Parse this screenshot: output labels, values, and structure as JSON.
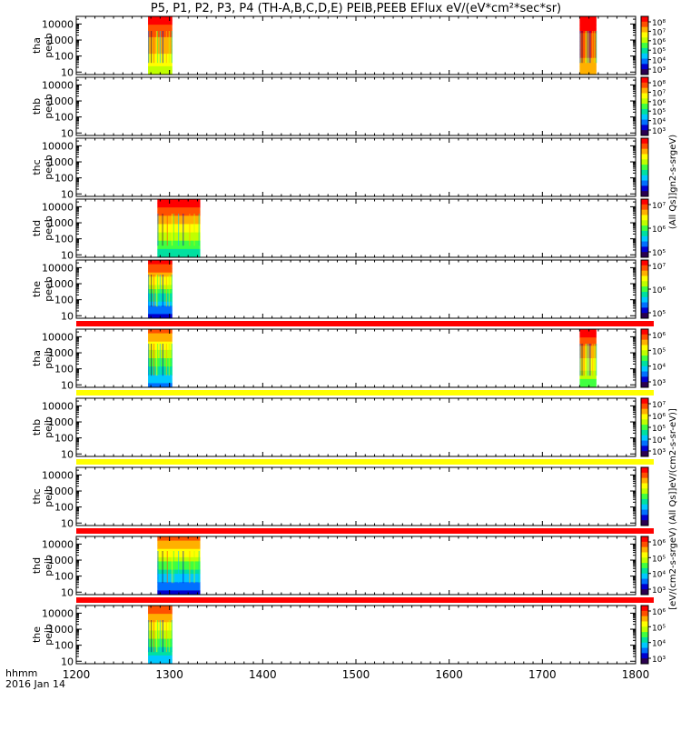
{
  "title": "P5, P1, P2, P3, P4 (TH-A,B,C,D,E) PEIB,PEEB EFlux eV/(eV*cm²*sec*sr)",
  "time_label": "hhmm",
  "date_label": "2016 Jan 14",
  "x_ticks": [
    "1200",
    "1300",
    "1400",
    "1500",
    "1600",
    "1700",
    "1800"
  ],
  "y_ticks": [
    "10",
    "100",
    "1000",
    "10000"
  ],
  "cbar_label_a": "(All Qs]]gn2-s-srgeV)",
  "cbar_label_b": "[eV/(cm2-s-srgeV) (All Qs]]eV/(cm2-s-sr-eV)]",
  "colors": {
    "rainbow": [
      "#2a0050",
      "#0000d0",
      "#0070ff",
      "#00c8ff",
      "#00e0a0",
      "#40ff40",
      "#c0ff00",
      "#ffff00",
      "#ffb000",
      "#ff5000",
      "#ff0000"
    ],
    "flag_red": "#ff0000",
    "flag_yellow": "#ffff00",
    "frame": "#000000",
    "background": "#ffffff"
  },
  "chart_data": {
    "type": "heatmap",
    "x_unit": "hhmm",
    "xlim": [
      1200,
      1800
    ],
    "y_scale": "log",
    "ylim_eV": [
      7,
      30000
    ],
    "panels": [
      {
        "probe_label": "tha",
        "species_label": "peeb",
        "cbar_ticks": [
          "10⁸",
          "10⁷",
          "10⁶",
          "10⁵",
          "10⁴",
          "10³"
        ],
        "blocks": [
          {
            "x0": 1277,
            "x1": 1303,
            "style": "hot",
            "min_color_index": 6
          },
          {
            "x0": 1740,
            "x1": 1758,
            "style": "hot",
            "min_color_index": 8
          }
        ]
      },
      {
        "probe_label": "thb",
        "species_label": "peeb",
        "cbar_ticks": [
          "10⁸",
          "10⁷",
          "10⁶",
          "10⁵",
          "10⁴",
          "10³"
        ],
        "blocks": []
      },
      {
        "probe_label": "thc",
        "species_label": "peeb",
        "cbar_ticks": [],
        "blocks": []
      },
      {
        "probe_label": "thd",
        "species_label": "peeb",
        "cbar_ticks": [
          "10⁷",
          "10⁶",
          "10⁵"
        ],
        "blocks": [
          {
            "x0": 1287,
            "x1": 1333,
            "style": "hot",
            "min_color_index": 4
          }
        ]
      },
      {
        "probe_label": "the",
        "species_label": "peeb",
        "cbar_ticks": [
          "10⁷",
          "10⁶",
          "10⁵"
        ],
        "blocks": [
          {
            "x0": 1277,
            "x1": 1303,
            "style": "mixed",
            "min_color_index": 1
          }
        ],
        "flag_below": "red"
      },
      {
        "probe_label": "tha",
        "species_label": "peib",
        "cbar_ticks": [
          "10⁶",
          "10⁵",
          "10⁴",
          "10³"
        ],
        "blocks": [
          {
            "x0": 1277,
            "x1": 1303,
            "style": "cool",
            "min_color_index": 2
          },
          {
            "x0": 1740,
            "x1": 1758,
            "style": "mixed",
            "min_color_index": 5
          }
        ],
        "flag_below": "yellow"
      },
      {
        "probe_label": "thb",
        "species_label": "peib",
        "cbar_ticks": [
          "10⁷",
          "10⁶",
          "10⁵",
          "10⁴",
          "10³"
        ],
        "blocks": [],
        "flag_below": "yellow"
      },
      {
        "probe_label": "thc",
        "species_label": "peib",
        "cbar_ticks": [],
        "blocks": [],
        "flag_below": "red"
      },
      {
        "probe_label": "thd",
        "species_label": "peib",
        "cbar_ticks": [
          "10⁶",
          "10⁵",
          "10⁴",
          "10³"
        ],
        "blocks": [
          {
            "x0": 1287,
            "x1": 1333,
            "style": "cool",
            "min_color_index": 1
          }
        ],
        "flag_below": "red"
      },
      {
        "probe_label": "the",
        "species_label": "peib",
        "cbar_ticks": [
          "10⁶",
          "10⁵",
          "10⁴",
          "10³"
        ],
        "blocks": [
          {
            "x0": 1277,
            "x1": 1303,
            "style": "cool",
            "min_color_index": 3
          }
        ]
      }
    ]
  }
}
